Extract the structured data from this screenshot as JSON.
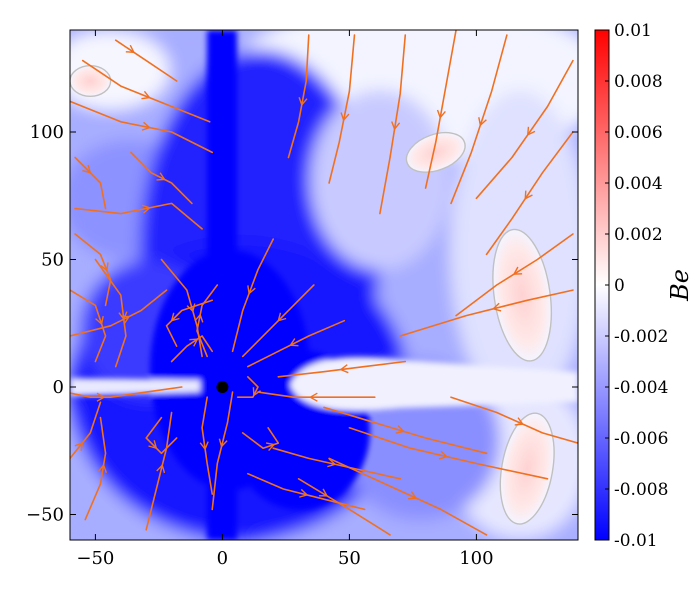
{
  "chart_data": {
    "type": "heatmap",
    "title": "",
    "xlabel": "",
    "ylabel": "",
    "xlim": [
      -60,
      140
    ],
    "ylim": [
      -60,
      140
    ],
    "x_ticks": [
      -50,
      0,
      50,
      100
    ],
    "y_ticks": [
      -50,
      0,
      50,
      100
    ],
    "colormap": {
      "low_color": "#0000ff",
      "mid_color": "#ffffff",
      "high_color": "#ff0000",
      "min": -0.01,
      "max": 0.01
    },
    "colorbar": {
      "label": "Be",
      "ticks": [
        {
          "value": 0.01,
          "label": "0.01"
        },
        {
          "value": 0.008,
          "label": "0.008"
        },
        {
          "value": 0.006,
          "label": "0.006"
        },
        {
          "value": 0.004,
          "label": "0.004"
        },
        {
          "value": 0.002,
          "label": "0.002"
        },
        {
          "value": 0,
          "label": "0"
        },
        {
          "value": -0.002,
          "label": "-0.002"
        },
        {
          "value": -0.004,
          "label": "-0.004"
        },
        {
          "value": -0.006,
          "label": "-0.006"
        },
        {
          "value": -0.008,
          "label": "-0.008"
        },
        {
          "value": -0.01,
          "label": "-0.01"
        }
      ]
    },
    "central_object": {
      "x": 0,
      "y": 0
    },
    "streamline_color": "#f07020",
    "contour_color": "#c0c0c0",
    "positive_regions": [
      {
        "cx": 118,
        "cy": 36,
        "rx": 11,
        "ry": 26,
        "rot": -8
      },
      {
        "cx": 120,
        "cy": -32,
        "rx": 10,
        "ry": 22,
        "rot": 10
      },
      {
        "cx": 84,
        "cy": 92,
        "rx": 12,
        "ry": 7,
        "rot": -20
      },
      {
        "cx": -52,
        "cy": 120,
        "rx": 8,
        "ry": 6,
        "rot": 0
      }
    ],
    "streamlines": [
      [
        [
          72,
          138
        ],
        [
          70,
          115
        ],
        [
          66,
          90
        ],
        [
          62,
          68
        ]
      ],
      [
        [
          92,
          140
        ],
        [
          88,
          118
        ],
        [
          84,
          96
        ],
        [
          80,
          78
        ]
      ],
      [
        [
          112,
          138
        ],
        [
          106,
          116
        ],
        [
          98,
          92
        ],
        [
          90,
          72
        ]
      ],
      [
        [
          138,
          128
        ],
        [
          128,
          110
        ],
        [
          114,
          90
        ],
        [
          100,
          74
        ]
      ],
      [
        [
          138,
          100
        ],
        [
          126,
          84
        ],
        [
          114,
          66
        ],
        [
          104,
          52
        ]
      ],
      [
        [
          138,
          60
        ],
        [
          124,
          50
        ],
        [
          108,
          40
        ],
        [
          92,
          28
        ]
      ],
      [
        [
          138,
          38
        ],
        [
          120,
          34
        ],
        [
          96,
          28
        ],
        [
          70,
          20
        ]
      ],
      [
        [
          52,
          138
        ],
        [
          50,
          116
        ],
        [
          46,
          96
        ],
        [
          42,
          80
        ]
      ],
      [
        [
          34,
          138
        ],
        [
          33,
          120
        ],
        [
          30,
          104
        ],
        [
          26,
          90
        ]
      ],
      [
        [
          -55,
          128
        ],
        [
          -40,
          118
        ],
        [
          -20,
          110
        ],
        [
          -5,
          104
        ]
      ],
      [
        [
          -42,
          136
        ],
        [
          -30,
          128
        ],
        [
          -18,
          120
        ]
      ],
      [
        [
          -60,
          112
        ],
        [
          -40,
          104
        ],
        [
          -20,
          100
        ],
        [
          -4,
          92
        ]
      ],
      [
        [
          -58,
          90
        ],
        [
          -48,
          80
        ],
        [
          -46,
          70
        ]
      ],
      [
        [
          -58,
          70
        ],
        [
          -40,
          68
        ],
        [
          -20,
          72
        ],
        [
          -8,
          62
        ]
      ],
      [
        [
          -50,
          50
        ],
        [
          -40,
          36
        ],
        [
          -38,
          20
        ],
        [
          -42,
          8
        ]
      ],
      [
        [
          -24,
          50
        ],
        [
          -14,
          38
        ],
        [
          -10,
          24
        ],
        [
          -8,
          12
        ]
      ],
      [
        [
          -60,
          38
        ],
        [
          -50,
          32
        ],
        [
          -46,
          20
        ],
        [
          -50,
          10
        ]
      ],
      [
        [
          20,
          58
        ],
        [
          14,
          46
        ],
        [
          8,
          30
        ],
        [
          4,
          14
        ]
      ],
      [
        [
          36,
          40
        ],
        [
          28,
          32
        ],
        [
          18,
          22
        ],
        [
          8,
          12
        ]
      ],
      [
        [
          48,
          26
        ],
        [
          34,
          20
        ],
        [
          22,
          14
        ],
        [
          10,
          8
        ]
      ],
      [
        [
          72,
          10
        ],
        [
          56,
          8
        ],
        [
          40,
          6
        ],
        [
          22,
          4
        ]
      ],
      [
        [
          60,
          -4
        ],
        [
          44,
          -4
        ],
        [
          28,
          -4
        ],
        [
          14,
          -2
        ]
      ],
      [
        [
          -62,
          -2
        ],
        [
          -52,
          -4
        ],
        [
          -44,
          -4
        ],
        [
          -30,
          -2
        ],
        [
          -16,
          0
        ]
      ],
      [
        [
          -60,
          -28
        ],
        [
          -52,
          -18
        ],
        [
          -48,
          -6
        ]
      ],
      [
        [
          -54,
          -52
        ],
        [
          -48,
          -38
        ],
        [
          -46,
          -26
        ],
        [
          -48,
          -12
        ]
      ],
      [
        [
          -30,
          -56
        ],
        [
          -26,
          -40
        ],
        [
          -22,
          -24
        ],
        [
          -20,
          -10
        ]
      ],
      [
        [
          -6,
          -4
        ],
        [
          -8,
          -16
        ],
        [
          -6,
          -30
        ],
        [
          -4,
          -42
        ]
      ],
      [
        [
          4,
          -2
        ],
        [
          2,
          -14
        ],
        [
          -2,
          -30
        ],
        [
          -4,
          -48
        ]
      ],
      [
        [
          8,
          -18
        ],
        [
          16,
          -24
        ],
        [
          22,
          -22
        ],
        [
          18,
          -16
        ]
      ],
      [
        [
          -24,
          -12
        ],
        [
          -30,
          -20
        ],
        [
          -24,
          -26
        ],
        [
          -18,
          -20
        ]
      ],
      [
        [
          10,
          -34
        ],
        [
          24,
          -40
        ],
        [
          40,
          -44
        ],
        [
          56,
          -48
        ]
      ],
      [
        [
          20,
          -24
        ],
        [
          34,
          -28
        ],
        [
          52,
          -32
        ],
        [
          70,
          -36
        ]
      ],
      [
        [
          40,
          -8
        ],
        [
          60,
          -14
        ],
        [
          80,
          -20
        ],
        [
          104,
          -26
        ]
      ],
      [
        [
          50,
          -16
        ],
        [
          74,
          -24
        ],
        [
          100,
          -30
        ],
        [
          128,
          -36
        ]
      ],
      [
        [
          42,
          -28
        ],
        [
          64,
          -38
        ],
        [
          86,
          -48
        ],
        [
          104,
          -58
        ]
      ],
      [
        [
          30,
          -36
        ],
        [
          50,
          -48
        ],
        [
          66,
          -58
        ]
      ],
      [
        [
          90,
          -4
        ],
        [
          108,
          -10
        ],
        [
          126,
          -18
        ],
        [
          140,
          -22
        ]
      ],
      [
        [
          -20,
          10
        ],
        [
          -14,
          16
        ],
        [
          -8,
          20
        ],
        [
          -4,
          14
        ]
      ],
      [
        [
          -6,
          12
        ],
        [
          -10,
          22
        ],
        [
          -8,
          32
        ],
        [
          -2,
          40
        ]
      ],
      [
        [
          10,
          4
        ],
        [
          14,
          0
        ],
        [
          12,
          -4
        ],
        [
          6,
          -4
        ]
      ],
      [
        [
          -4,
          34
        ],
        [
          -16,
          30
        ],
        [
          -22,
          24
        ],
        [
          -18,
          16
        ]
      ],
      [
        [
          -60,
          20
        ],
        [
          -44,
          24
        ],
        [
          -32,
          30
        ],
        [
          -22,
          38
        ]
      ],
      [
        [
          -58,
          60
        ],
        [
          -48,
          52
        ],
        [
          -44,
          42
        ],
        [
          -46,
          32
        ]
      ],
      [
        [
          -36,
          92
        ],
        [
          -28,
          84
        ],
        [
          -20,
          80
        ],
        [
          -12,
          72
        ]
      ]
    ]
  }
}
